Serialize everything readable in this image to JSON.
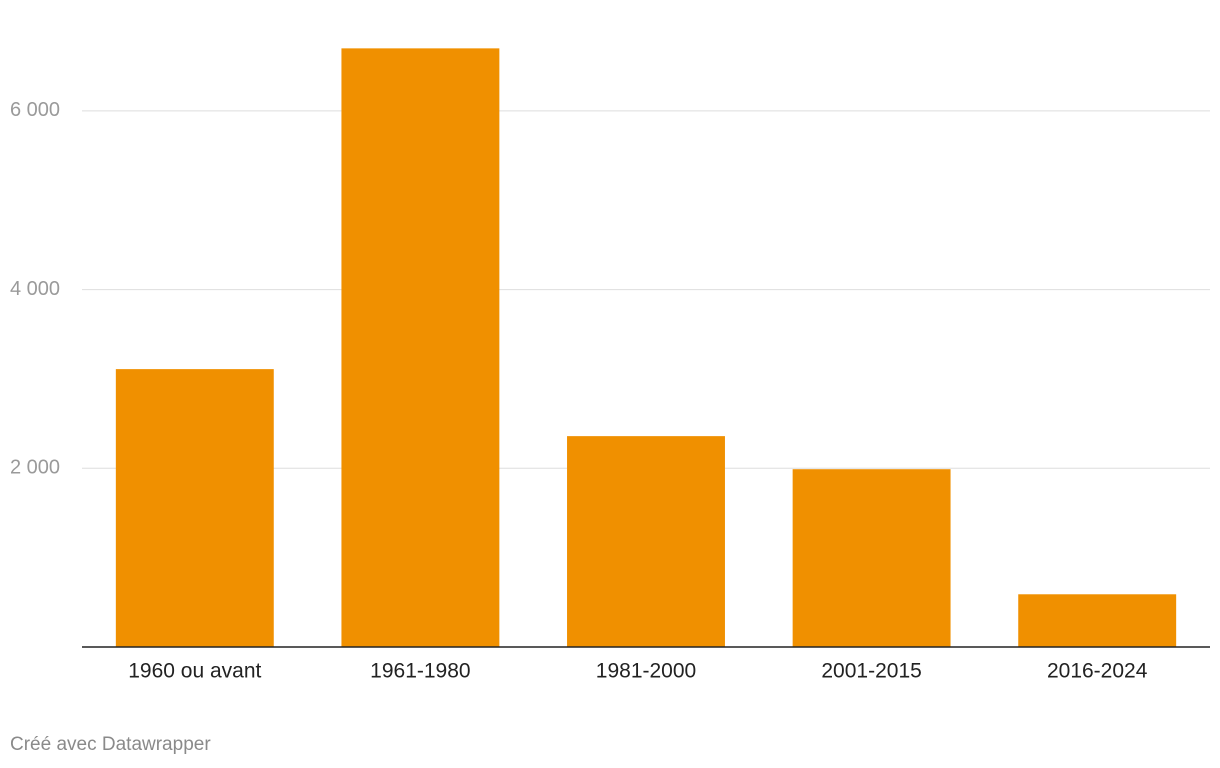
{
  "chart_data": {
    "type": "bar",
    "categories": [
      "1960 ou avant",
      "1961-1980",
      "1981-2000",
      "2001-2015",
      "2016-2024"
    ],
    "values": [
      3110,
      6700,
      2360,
      1990,
      590
    ],
    "color": "#f09000",
    "ylim": [
      0,
      7000
    ],
    "yticks": [
      {
        "value": 2000,
        "label": "2 000"
      },
      {
        "value": 4000,
        "label": "4 000"
      },
      {
        "value": 6000,
        "label": "6 000"
      }
    ],
    "grid": true,
    "footer": "Créé avec Datawrapper"
  }
}
